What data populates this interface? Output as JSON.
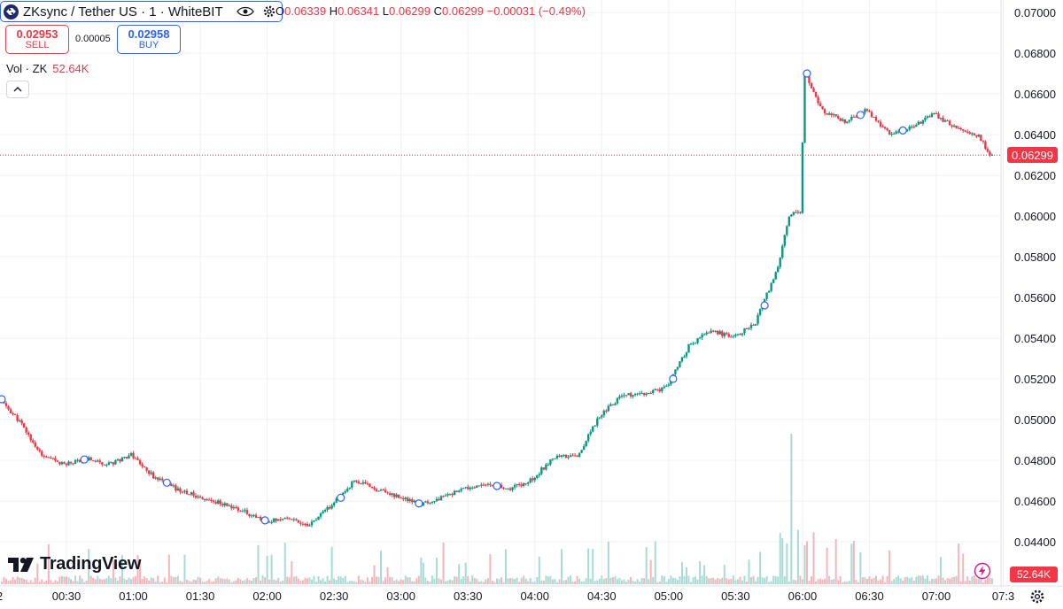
{
  "legend": {
    "symbol": "ZKsync / Tether US · 1 · WhiteBIT",
    "open_label": "O",
    "open": "0.06339",
    "high_label": "H",
    "high": "0.06341",
    "low_label": "L",
    "low": "0.06299",
    "close_label": "C",
    "close": "0.06299",
    "change": "−0.00031 (−0.49%)"
  },
  "trade": {
    "sell_price": "0.02953",
    "sell_label": "SELL",
    "spread": "0.00005",
    "buy_price": "0.02958",
    "buy_label": "BUY"
  },
  "volume_legend": {
    "label": "Vol · ZK",
    "value": "52.64K"
  },
  "branding": {
    "logo_text": "TradingView"
  },
  "price_axis": {
    "ticks": [
      "0.04400",
      "0.04600",
      "0.04800",
      "0.05000",
      "0.05200",
      "0.05400",
      "0.05600",
      "0.05800",
      "0.06000",
      "0.06200",
      "0.06400",
      "0.06600",
      "0.06800",
      "0.07000"
    ],
    "current_price": "0.06299"
  },
  "time_axis": {
    "ticks": [
      "2",
      "00:30",
      "01:00",
      "01:30",
      "02:00",
      "02:30",
      "03:00",
      "03:30",
      "04:00",
      "04:30",
      "05:00",
      "05:30",
      "06:00",
      "06:30",
      "07:00",
      "07:3"
    ]
  },
  "volume_tag": "52.64K",
  "colors": {
    "up": "#089981",
    "down": "#f23645",
    "accent": "#2962ff",
    "volume_up": "#a8dbd3",
    "volume_down": "#f7b4ba"
  },
  "icons": [
    "zksync-logo",
    "eye-icon",
    "gear-icon",
    "chevron-up-icon",
    "tradingview-logo",
    "lightning-icon",
    "settings-icon"
  ],
  "chart_data": {
    "type": "candlestick",
    "title": "ZKsync / Tether US · 1 · WhiteBIT",
    "ylim": [
      0.0432,
      0.0702
    ],
    "xlim": [
      "00:01",
      "07:29"
    ],
    "grid": true,
    "time": [
      "00:01",
      "00:10",
      "00:20",
      "00:30",
      "00:40",
      "00:50",
      "01:00",
      "01:10",
      "01:20",
      "01:30",
      "01:40",
      "01:50",
      "02:00",
      "02:10",
      "02:20",
      "02:30",
      "02:40",
      "02:50",
      "03:00",
      "03:10",
      "03:20",
      "03:30",
      "03:40",
      "03:50",
      "04:00",
      "04:10",
      "04:20",
      "04:30",
      "04:40",
      "04:50",
      "05:00",
      "05:10",
      "05:20",
      "05:30",
      "05:40",
      "05:50",
      "05:55",
      "06:00",
      "06:01",
      "06:02",
      "06:10",
      "06:20",
      "06:30",
      "06:40",
      "06:50",
      "07:00",
      "07:10",
      "07:20",
      "07:25"
    ],
    "price": [
      0.051,
      0.0499,
      0.0482,
      0.0478,
      0.0481,
      0.0478,
      0.0483,
      0.0472,
      0.0466,
      0.0462,
      0.0459,
      0.0455,
      0.045,
      0.0452,
      0.0448,
      0.0458,
      0.047,
      0.0466,
      0.0462,
      0.0458,
      0.0462,
      0.0466,
      0.0468,
      0.0466,
      0.0471,
      0.0482,
      0.0482,
      0.0502,
      0.0512,
      0.0512,
      0.0516,
      0.0536,
      0.0544,
      0.054,
      0.0548,
      0.0575,
      0.06,
      0.0602,
      0.0636,
      0.067,
      0.0652,
      0.0646,
      0.0652,
      0.064,
      0.0644,
      0.065,
      0.0643,
      0.0639,
      0.063
    ],
    "volume_spike": {
      "time": "05:55",
      "value": "high"
    },
    "volume_last": "52.64K"
  }
}
